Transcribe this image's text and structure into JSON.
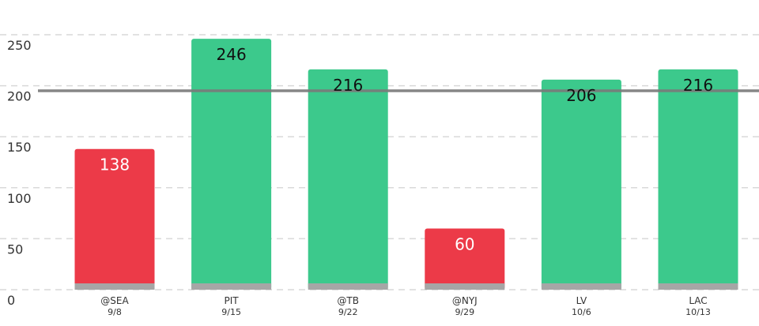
{
  "chart_data": {
    "type": "bar",
    "categories": [
      "@SEA",
      "PIT",
      "@TB",
      "@NYJ",
      "LV",
      "LAC"
    ],
    "dates": [
      "9/8",
      "9/15",
      "9/22",
      "9/29",
      "10/6",
      "10/13"
    ],
    "values": [
      138,
      246,
      216,
      60,
      206,
      216
    ],
    "value_labels": [
      "138",
      "246",
      "216",
      "60",
      "206",
      "216"
    ],
    "bar_colors": [
      "#ec3a48",
      "#3cc98c",
      "#3cc98c",
      "#ec3a48",
      "#3cc98c",
      "#3cc98c"
    ],
    "label_colors": [
      "#ffffff",
      "#111111",
      "#111111",
      "#ffffff",
      "#111111",
      "#111111"
    ],
    "baseline_color": "#a6a6a6",
    "threshold": 195,
    "threshold_color": "#7a7a7a",
    "gridline_color": "#d9d9d9",
    "yticks": [
      0,
      50,
      100,
      150,
      200,
      250
    ],
    "ytick_labels": [
      "0",
      "50",
      "100",
      "150",
      "200",
      "250"
    ],
    "ylim": [
      0,
      250
    ],
    "grid": true,
    "title": "",
    "xlabel": "",
    "ylabel": ""
  }
}
